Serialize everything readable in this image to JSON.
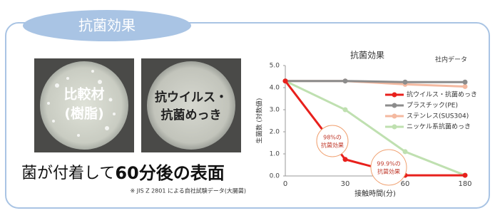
{
  "header": {
    "title": "抗菌効果"
  },
  "samples": [
    {
      "label_lines": [
        "比較材",
        "(樹脂)"
      ]
    },
    {
      "label_lines": [
        "抗ウイルス・",
        "抗菌めっき"
      ]
    }
  ],
  "caption": {
    "parts": [
      "菌が付着して",
      "60分後の表面"
    ]
  },
  "footnote": "※ JIS Z 2801 による自社試験データ(大腸菌)",
  "chart_data": {
    "type": "line",
    "title": "抗菌効果",
    "note": "社内データ",
    "y_label": "生菌数 (対数値)",
    "x_label": "接触時間(分)",
    "categories": [
      "0",
      "30",
      "60",
      "180"
    ],
    "ylim": [
      0,
      5
    ],
    "yticks": [
      {
        "value": 0,
        "label": "0.0"
      },
      {
        "value": 1,
        "label": "1.0"
      },
      {
        "value": 2,
        "label": "2.0"
      },
      {
        "value": 3,
        "label": "3.0"
      },
      {
        "value": 4,
        "label": "4.0"
      },
      {
        "value": 5,
        "label": "5.0"
      }
    ],
    "series": [
      {
        "name": "抗ウイルス・抗菌めっき",
        "color": "#e8201c",
        "values": [
          4.3,
          0.75,
          0.03,
          0.03
        ]
      },
      {
        "name": "プラスチック(PE)",
        "color": "#8c8c8c",
        "values": [
          4.3,
          4.3,
          4.25,
          4.25
        ]
      },
      {
        "name": "ステンレス(SUS304)",
        "color": "#f4b9a0",
        "values": [
          4.3,
          4.3,
          4.15,
          4.05
        ]
      },
      {
        "name": "ニッケル系抗菌めっき",
        "color": "#bfe0b0",
        "values": [
          4.3,
          3.0,
          1.1,
          0.03
        ]
      }
    ],
    "annotations": [
      {
        "lines": [
          "98%の",
          "抗菌効果"
        ]
      },
      {
        "lines": [
          "99.9%の",
          "抗菌効果"
        ]
      }
    ]
  }
}
